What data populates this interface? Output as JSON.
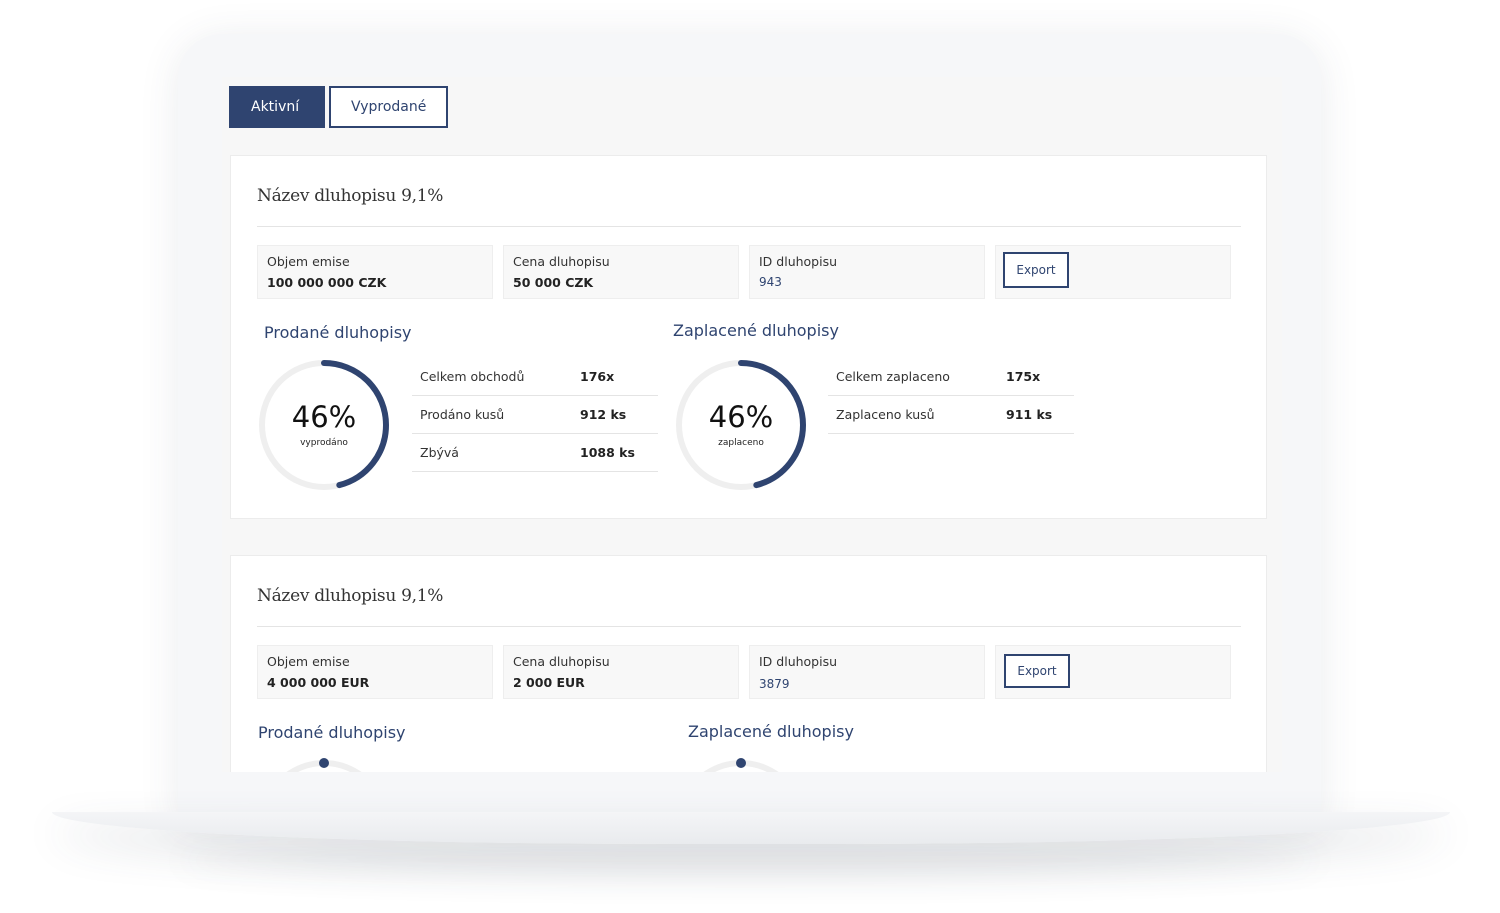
{
  "tabs": [
    {
      "label": "Aktivní",
      "active": true
    },
    {
      "label": "Vyprodané",
      "active": false
    }
  ],
  "bonds": [
    {
      "title": "Název dluhopisu 9,1%",
      "info": [
        {
          "label": "Objem emise",
          "value": "100 000 000 CZK"
        },
        {
          "label": "Cena dluhopisu",
          "value": "50 000 CZK"
        },
        {
          "label": "ID dluhopisu",
          "value": "943"
        }
      ],
      "export_label": "Export",
      "sold": {
        "title": "Prodané dluhopisy",
        "percent_label": "46%",
        "percent_value": 46,
        "sublabel": "vyprodáno",
        "rows": [
          {
            "label": "Celkem obchodů",
            "value": "176x"
          },
          {
            "label": "Prodáno kusů",
            "value": "912 ks"
          },
          {
            "label": "Zbývá",
            "value": "1088 ks"
          }
        ]
      },
      "paid": {
        "title": "Zaplacené dluhopisy",
        "percent_label": "46%",
        "percent_value": 46,
        "sublabel": "zaplaceno",
        "rows": [
          {
            "label": "Celkem zaplaceno",
            "value": "175x"
          },
          {
            "label": "Zaplaceno kusů",
            "value": "911 ks"
          }
        ]
      }
    },
    {
      "title": "Název dluhopisu 9,1%",
      "info": [
        {
          "label": "Objem emise",
          "value": "4 000 000 EUR"
        },
        {
          "label": "Cena dluhopisu",
          "value": "2 000 EUR"
        },
        {
          "label": "ID dluhopisu",
          "value": "3879"
        }
      ],
      "export_label": "Export",
      "sold": {
        "title": "Prodané dluhopisy"
      },
      "paid": {
        "title": "Zaplacené dluhopisy"
      }
    }
  ],
  "colors": {
    "accent": "#2f4470",
    "track": "#efefef"
  }
}
